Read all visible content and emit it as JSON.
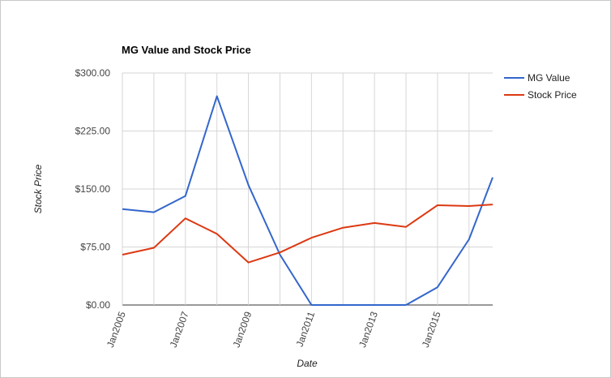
{
  "chart_data": {
    "type": "line",
    "title": "MG Value and Stock Price",
    "xlabel": "Date",
    "ylabel": "Stock Price",
    "x": [
      2005,
      2006,
      2007,
      2008,
      2009,
      2010,
      2011,
      2012,
      2013,
      2014,
      2015,
      2016,
      2016.75
    ],
    "x_ticks": [
      2005,
      2007,
      2009,
      2011,
      2013,
      2015
    ],
    "x_tick_labels": [
      "Jan2005",
      "Jan2007",
      "Jan2009",
      "Jan2011",
      "Jan2013",
      "Jan2015"
    ],
    "xlim": [
      2005,
      2016.75
    ],
    "ylim": [
      0,
      300
    ],
    "y_ticks": [
      0,
      75,
      150,
      225,
      300
    ],
    "y_tick_labels": [
      "$0.00",
      "$75.00",
      "$150.00",
      "$225.00",
      "$300.00"
    ],
    "grid": true,
    "legend_position": "right",
    "series": [
      {
        "name": "MG Value",
        "color": "#3366cc",
        "values": [
          124,
          120,
          141,
          270,
          155,
          65,
          0,
          0,
          0,
          0,
          23,
          85,
          165
        ]
      },
      {
        "name": "Stock Price",
        "color": "#dc3912",
        "values": [
          65,
          74,
          112,
          92,
          55,
          68,
          87,
          100,
          106,
          101,
          129,
          128,
          130
        ]
      }
    ]
  }
}
